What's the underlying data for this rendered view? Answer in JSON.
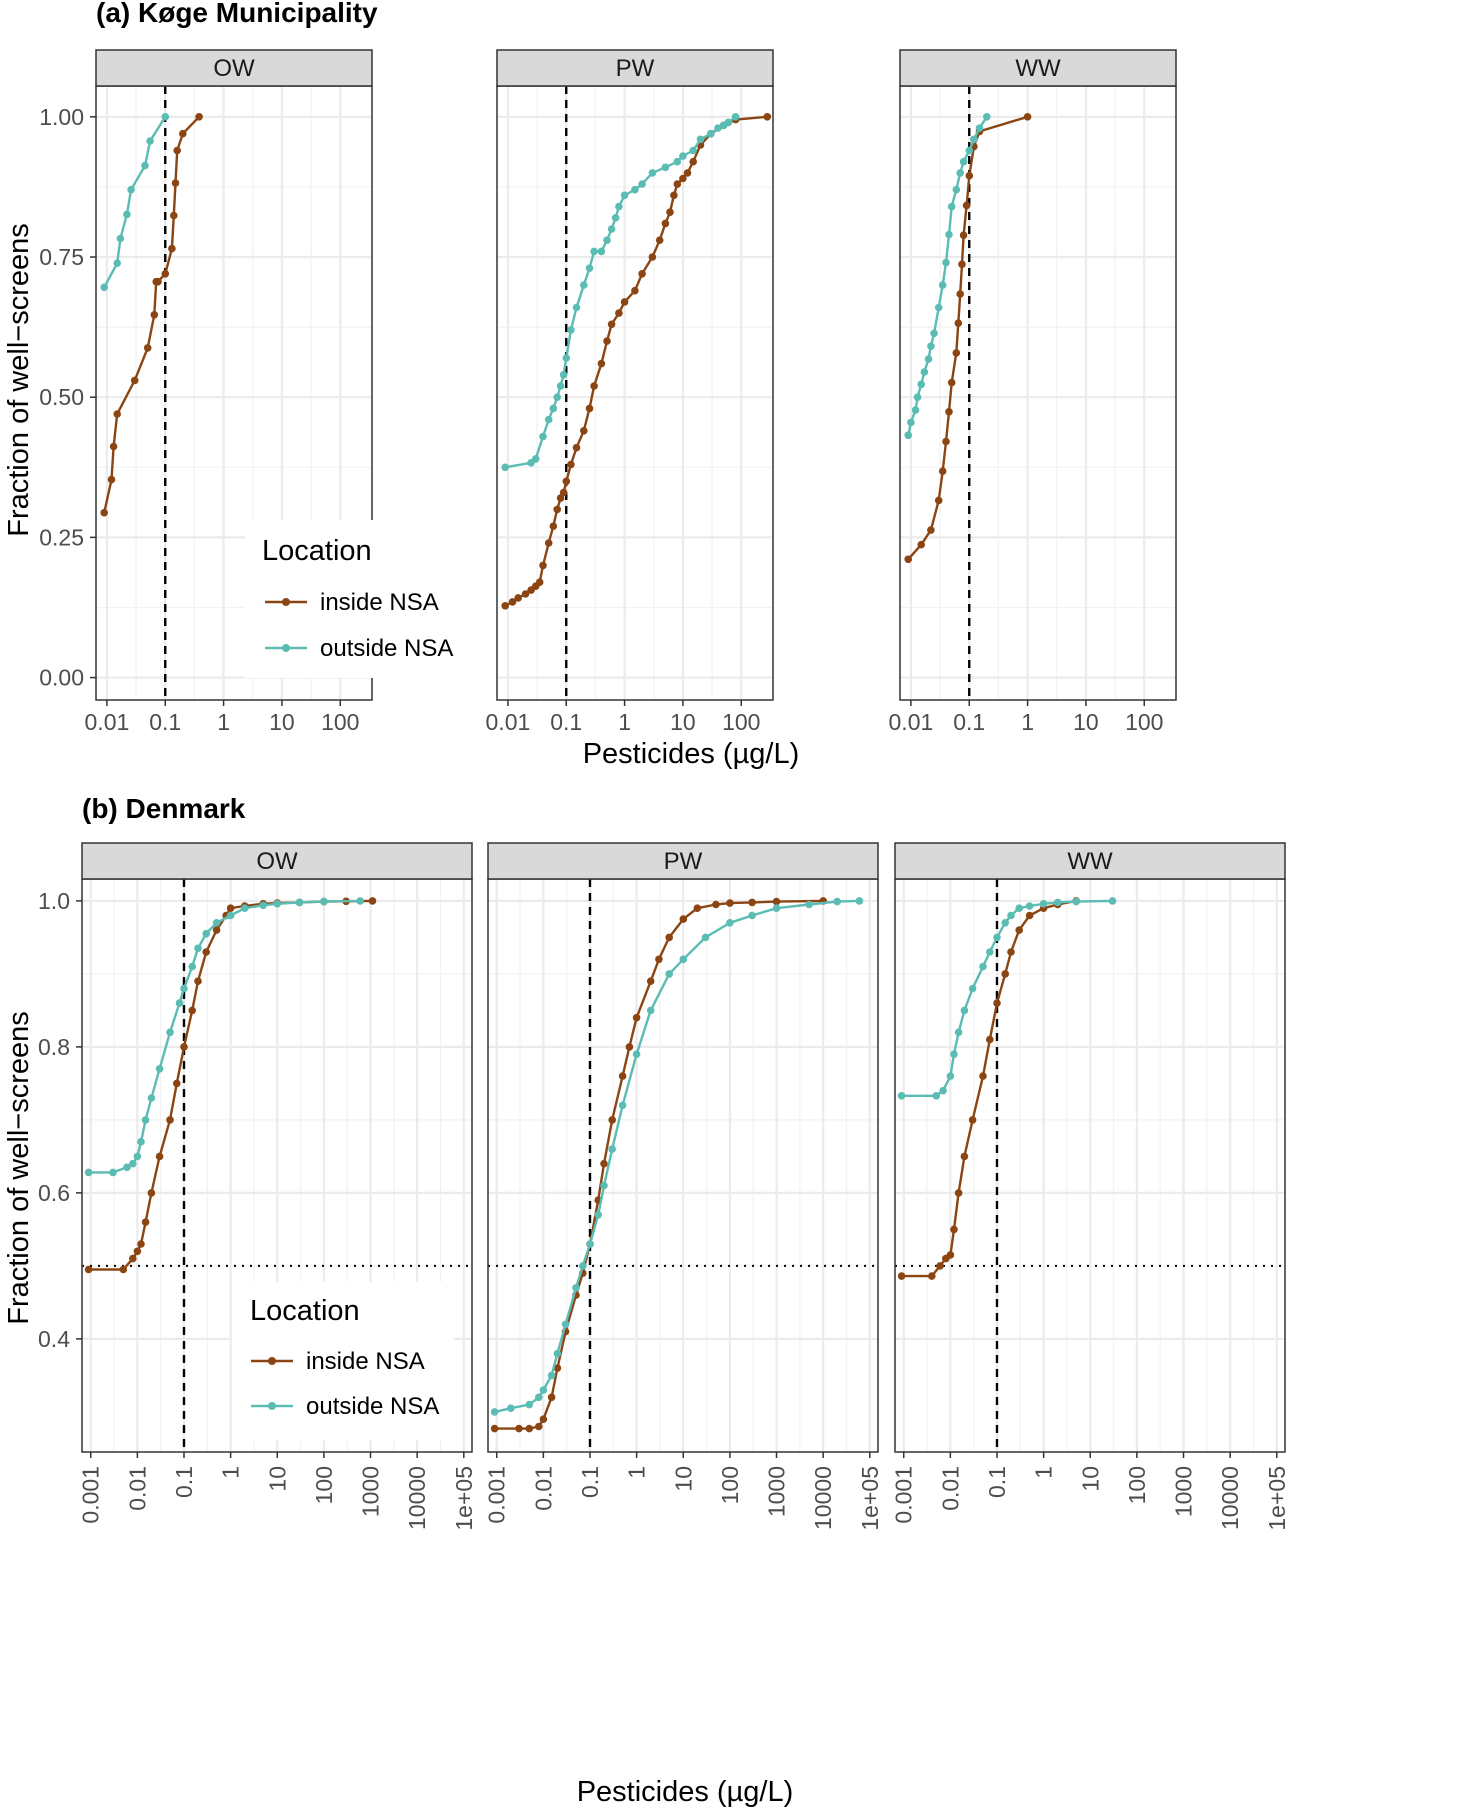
{
  "colors": {
    "inside": "#8B4513",
    "outside": "#5BBCB4"
  },
  "chart_data": [
    {
      "type": "line",
      "title": "(a) Køge Municipality",
      "xlabel": "Pesticides (µg/L)",
      "ylabel": "Fraction of well−screens",
      "x_scale": "log10",
      "xlim": [
        0.0065,
        350
      ],
      "ylim": [
        -0.04,
        1.055
      ],
      "x_ticks": [
        0.01,
        0.1,
        1,
        10,
        100
      ],
      "x_tick_labels": [
        "0.01",
        "0.1",
        "1",
        "10",
        "100"
      ],
      "y_ticks": [
        0,
        0.25,
        0.5,
        0.75,
        1
      ],
      "y_tick_labels": [
        "0.00",
        "0.25",
        "0.50",
        "0.75",
        "1.00"
      ],
      "vline": 0.1,
      "hline": null,
      "legend": {
        "title": "Location",
        "labels": [
          "inside NSA",
          "outside NSA"
        ],
        "position": "bottom-left of first panel"
      },
      "panels": [
        {
          "label": "OW",
          "series": [
            {
              "name": "inside NSA",
              "x": [
                0.009,
                0.012,
                0.013,
                0.015,
                0.03,
                0.05,
                0.065,
                0.07,
                0.075,
                0.1,
                0.13,
                0.14,
                0.15,
                0.16,
                0.2,
                0.38
              ],
              "y": [
                0.294,
                0.353,
                0.412,
                0.47,
                0.53,
                0.588,
                0.647,
                0.706,
                0.706,
                0.72,
                0.765,
                0.824,
                0.882,
                0.94,
                0.97,
                1.0
              ]
            },
            {
              "name": "outside NSA",
              "x": [
                0.009,
                0.015,
                0.017,
                0.022,
                0.026,
                0.045,
                0.055,
                0.1
              ],
              "y": [
                0.696,
                0.739,
                0.783,
                0.826,
                0.87,
                0.913,
                0.957,
                1.0
              ]
            }
          ]
        },
        {
          "label": "PW",
          "series": [
            {
              "name": "inside NSA",
              "x": [
                0.009,
                0.012,
                0.015,
                0.02,
                0.025,
                0.03,
                0.035,
                0.04,
                0.05,
                0.06,
                0.07,
                0.08,
                0.09,
                0.1,
                0.12,
                0.15,
                0.2,
                0.25,
                0.3,
                0.4,
                0.5,
                0.6,
                0.8,
                1.0,
                1.5,
                2,
                3,
                4,
                5,
                6,
                7,
                8,
                10,
                12,
                15,
                20,
                30,
                50,
                80,
                280
              ],
              "y": [
                0.128,
                0.135,
                0.142,
                0.149,
                0.156,
                0.163,
                0.17,
                0.2,
                0.24,
                0.27,
                0.3,
                0.32,
                0.33,
                0.35,
                0.38,
                0.41,
                0.44,
                0.48,
                0.52,
                0.56,
                0.6,
                0.63,
                0.65,
                0.67,
                0.69,
                0.72,
                0.75,
                0.78,
                0.81,
                0.83,
                0.86,
                0.88,
                0.89,
                0.9,
                0.92,
                0.95,
                0.97,
                0.985,
                0.995,
                1.0
              ]
            },
            {
              "name": "outside NSA",
              "x": [
                0.009,
                0.025,
                0.03,
                0.04,
                0.05,
                0.06,
                0.07,
                0.08,
                0.09,
                0.1,
                0.12,
                0.15,
                0.2,
                0.25,
                0.3,
                0.4,
                0.5,
                0.6,
                0.7,
                0.8,
                1.0,
                1.5,
                2,
                3,
                5,
                8,
                10,
                15,
                20,
                30,
                40,
                50,
                60,
                80
              ],
              "y": [
                0.375,
                0.383,
                0.39,
                0.43,
                0.46,
                0.48,
                0.5,
                0.52,
                0.54,
                0.57,
                0.62,
                0.66,
                0.7,
                0.73,
                0.76,
                0.76,
                0.78,
                0.8,
                0.82,
                0.84,
                0.86,
                0.87,
                0.88,
                0.9,
                0.91,
                0.92,
                0.93,
                0.94,
                0.96,
                0.97,
                0.98,
                0.985,
                0.99,
                1.0
              ]
            }
          ]
        },
        {
          "label": "WW",
          "series": [
            {
              "name": "inside NSA",
              "x": [
                0.009,
                0.015,
                0.022,
                0.03,
                0.035,
                0.04,
                0.045,
                0.05,
                0.06,
                0.065,
                0.07,
                0.075,
                0.08,
                0.09,
                0.1,
                0.12,
                0.15,
                1.0
              ],
              "y": [
                0.211,
                0.237,
                0.263,
                0.316,
                0.368,
                0.421,
                0.474,
                0.526,
                0.579,
                0.632,
                0.684,
                0.737,
                0.789,
                0.842,
                0.895,
                0.947,
                0.974,
                1.0
              ]
            },
            {
              "name": "outside NSA",
              "x": [
                0.009,
                0.01,
                0.012,
                0.013,
                0.015,
                0.017,
                0.02,
                0.022,
                0.025,
                0.03,
                0.035,
                0.04,
                0.045,
                0.05,
                0.06,
                0.07,
                0.08,
                0.1,
                0.12,
                0.15,
                0.2
              ],
              "y": [
                0.432,
                0.455,
                0.477,
                0.5,
                0.523,
                0.545,
                0.568,
                0.591,
                0.614,
                0.66,
                0.7,
                0.74,
                0.79,
                0.84,
                0.87,
                0.9,
                0.92,
                0.94,
                0.96,
                0.98,
                1.0
              ]
            }
          ]
        }
      ]
    },
    {
      "type": "line",
      "title": "(b) Denmark",
      "xlabel": "Pesticides (µg/L)",
      "ylabel": "Fraction of well−screens",
      "x_scale": "log10",
      "xlim": [
        0.00065,
        150000
      ],
      "ylim": [
        0.245,
        1.03
      ],
      "x_ticks": [
        0.001,
        0.01,
        0.1,
        1,
        10,
        100,
        1000,
        10000,
        100000
      ],
      "x_tick_labels": [
        "0.001",
        "0.01",
        "0.1",
        "1",
        "10",
        "100",
        "1000",
        "10000",
        "1e+05"
      ],
      "y_ticks": [
        0.4,
        0.6,
        0.8,
        1.0
      ],
      "y_tick_labels": [
        "0.4",
        "0.6",
        "0.8",
        "1.0"
      ],
      "vline": 0.1,
      "hline": 0.5,
      "legend": {
        "title": "Location",
        "labels": [
          "inside NSA",
          "outside NSA"
        ],
        "position": "bottom-left of first panel"
      },
      "panels": [
        {
          "label": "OW",
          "series": [
            {
              "name": "inside NSA",
              "x": [
                0.0009,
                0.005,
                0.008,
                0.01,
                0.012,
                0.015,
                0.02,
                0.03,
                0.05,
                0.07,
                0.1,
                0.15,
                0.2,
                0.3,
                0.5,
                0.8,
                1.0,
                2,
                5,
                10,
                30,
                100,
                300,
                1100
              ],
              "y": [
                0.495,
                0.495,
                0.51,
                0.52,
                0.53,
                0.56,
                0.6,
                0.65,
                0.7,
                0.75,
                0.8,
                0.85,
                0.89,
                0.93,
                0.96,
                0.98,
                0.99,
                0.993,
                0.996,
                0.997,
                0.998,
                0.999,
                0.9995,
                1.0
              ]
            },
            {
              "name": "outside NSA",
              "x": [
                0.0009,
                0.003,
                0.006,
                0.008,
                0.01,
                0.012,
                0.015,
                0.02,
                0.03,
                0.05,
                0.08,
                0.1,
                0.15,
                0.2,
                0.3,
                0.5,
                1,
                2,
                5,
                10,
                30,
                100,
                600
              ],
              "y": [
                0.628,
                0.628,
                0.635,
                0.64,
                0.65,
                0.67,
                0.7,
                0.73,
                0.77,
                0.82,
                0.86,
                0.88,
                0.91,
                0.935,
                0.955,
                0.97,
                0.98,
                0.99,
                0.994,
                0.996,
                0.998,
                0.999,
                1.0
              ]
            }
          ]
        },
        {
          "label": "PW",
          "series": [
            {
              "name": "inside NSA",
              "x": [
                0.0009,
                0.003,
                0.005,
                0.008,
                0.01,
                0.015,
                0.02,
                0.03,
                0.05,
                0.07,
                0.1,
                0.15,
                0.2,
                0.3,
                0.5,
                0.7,
                1,
                2,
                3,
                5,
                10,
                20,
                50,
                100,
                300,
                1000,
                10000
              ],
              "y": [
                0.277,
                0.277,
                0.277,
                0.28,
                0.29,
                0.32,
                0.36,
                0.41,
                0.46,
                0.49,
                0.53,
                0.59,
                0.64,
                0.7,
                0.76,
                0.8,
                0.84,
                0.89,
                0.92,
                0.95,
                0.975,
                0.99,
                0.995,
                0.997,
                0.998,
                0.999,
                1.0
              ]
            },
            {
              "name": "outside NSA",
              "x": [
                0.0009,
                0.002,
                0.005,
                0.008,
                0.01,
                0.015,
                0.02,
                0.03,
                0.05,
                0.07,
                0.1,
                0.15,
                0.2,
                0.3,
                0.5,
                1,
                2,
                5,
                10,
                30,
                100,
                300,
                1000,
                5000,
                20000,
                60000
              ],
              "y": [
                0.3,
                0.305,
                0.31,
                0.32,
                0.33,
                0.35,
                0.38,
                0.42,
                0.47,
                0.5,
                0.53,
                0.57,
                0.61,
                0.66,
                0.72,
                0.79,
                0.85,
                0.9,
                0.92,
                0.95,
                0.97,
                0.98,
                0.99,
                0.995,
                0.999,
                1.0
              ]
            }
          ]
        },
        {
          "label": "WW",
          "series": [
            {
              "name": "inside NSA",
              "x": [
                0.0009,
                0.004,
                0.006,
                0.008,
                0.01,
                0.012,
                0.015,
                0.02,
                0.03,
                0.05,
                0.07,
                0.1,
                0.15,
                0.2,
                0.3,
                0.5,
                1,
                2,
                5
              ],
              "y": [
                0.486,
                0.486,
                0.5,
                0.51,
                0.515,
                0.55,
                0.6,
                0.65,
                0.7,
                0.76,
                0.81,
                0.86,
                0.9,
                0.93,
                0.96,
                0.98,
                0.99,
                0.995,
                1.0
              ]
            },
            {
              "name": "outside NSA",
              "x": [
                0.0009,
                0.005,
                0.007,
                0.01,
                0.012,
                0.015,
                0.02,
                0.03,
                0.05,
                0.07,
                0.1,
                0.15,
                0.2,
                0.3,
                0.5,
                1,
                2,
                5,
                30
              ],
              "y": [
                0.733,
                0.733,
                0.74,
                0.76,
                0.79,
                0.82,
                0.85,
                0.88,
                0.91,
                0.93,
                0.95,
                0.97,
                0.98,
                0.99,
                0.993,
                0.996,
                0.998,
                0.999,
                1.0
              ]
            }
          ]
        }
      ]
    }
  ]
}
